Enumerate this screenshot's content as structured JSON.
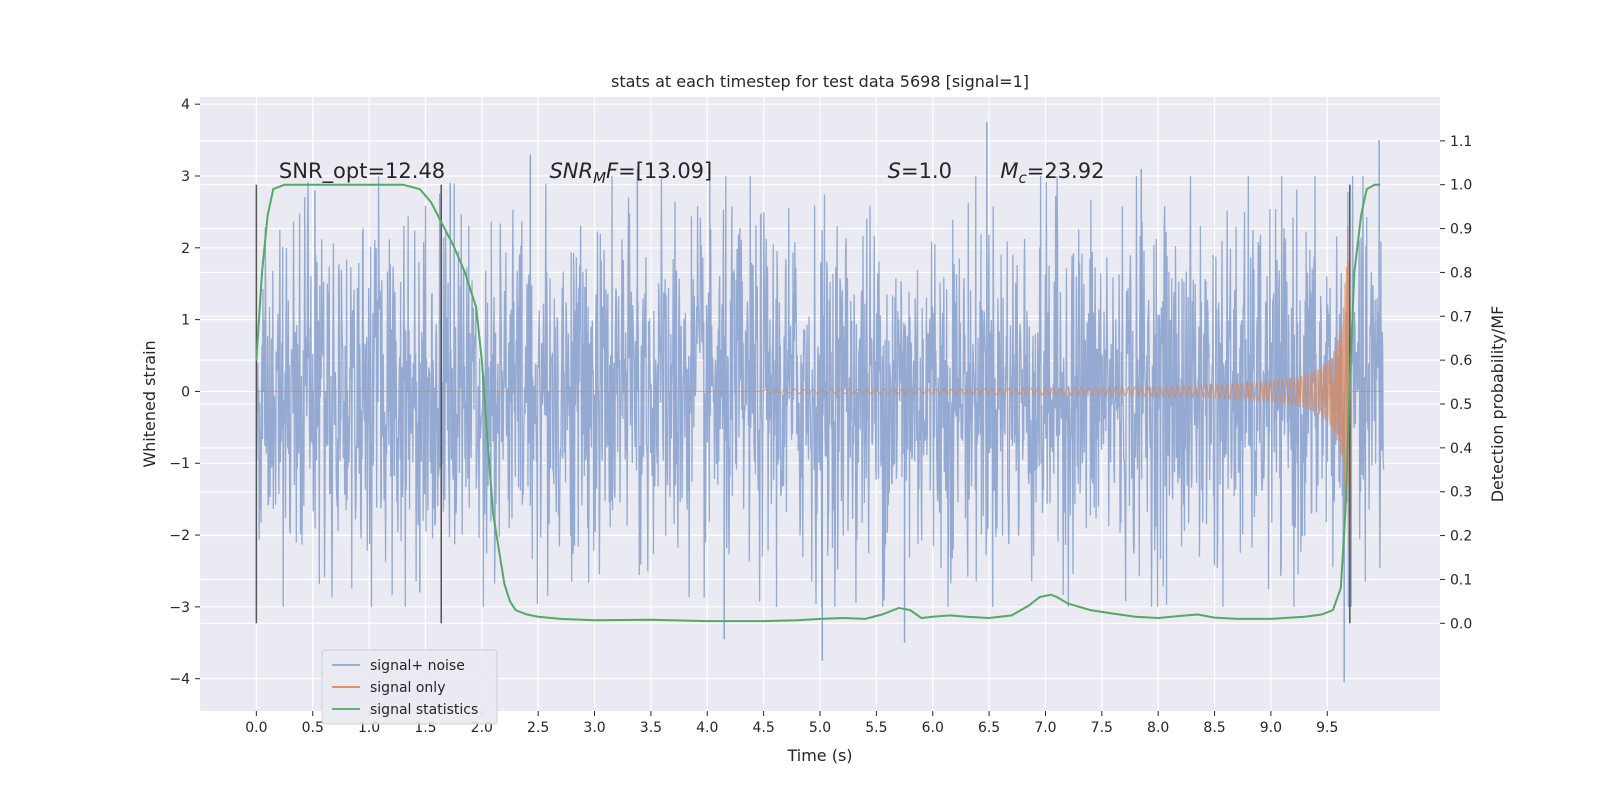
{
  "chart_data": {
    "type": "line",
    "title": "stats at each timestep for test data 5698 [signal=1]",
    "xlabel": "Time (s)",
    "ylabel": "Whitened strain",
    "ylabel_right": "Detection probability/MF",
    "xlim": [
      -0.5,
      10.5
    ],
    "ylim": [
      -4.45,
      4.1
    ],
    "ylim_right": [
      -0.2,
      1.2
    ],
    "x_ticks": [
      0.0,
      0.5,
      1.0,
      1.5,
      2.0,
      2.5,
      3.0,
      3.5,
      4.0,
      4.5,
      5.0,
      5.5,
      6.0,
      6.5,
      7.0,
      7.5,
      8.0,
      8.5,
      9.0,
      9.5
    ],
    "x_tick_labels": [
      "0.0",
      "0.5",
      "1.0",
      "1.5",
      "2.0",
      "2.5",
      "3.0",
      "3.5",
      "4.0",
      "4.5",
      "5.0",
      "5.5",
      "6.0",
      "6.5",
      "7.0",
      "7.5",
      "8.0",
      "8.5",
      "9.0",
      "9.5"
    ],
    "y_ticks": [
      -4,
      -3,
      -2,
      -1,
      0,
      1,
      2,
      3,
      4
    ],
    "y_tick_labels": [
      "−4",
      "−3",
      "−2",
      "−1",
      "0",
      "1",
      "2",
      "3",
      "4"
    ],
    "y2_ticks": [
      0.0,
      0.1,
      0.2,
      0.3,
      0.4,
      0.5,
      0.6,
      0.7,
      0.8,
      0.9,
      1.0,
      1.1
    ],
    "y2_tick_labels": [
      "0.0",
      "0.1",
      "0.2",
      "0.3",
      "0.4",
      "0.5",
      "0.6",
      "0.7",
      "0.8",
      "0.9",
      "1.0",
      "1.1"
    ],
    "grid": true,
    "legend_placement": "lower-left",
    "vertical_lines_x": [
      0.0,
      1.64,
      9.7
    ],
    "annotations": [
      {
        "id": "snr_opt",
        "x": 0.2,
        "text_plain": "SNR_opt=12.48"
      },
      {
        "id": "snr_mf",
        "x": 2.6,
        "text_italic": "SNR",
        "sub": "M",
        "text_rest_italic": "F",
        "text_rest": "=[13.09]"
      },
      {
        "id": "s",
        "x": 5.6,
        "text_italic": "S",
        "text_rest": "=1.0"
      },
      {
        "id": "mc",
        "x": 6.6,
        "text_italic": "M",
        "sub": "c",
        "text_rest": "=23.92"
      }
    ],
    "series": [
      {
        "name": "signal+ noise",
        "color": "#8fa6d0",
        "axis": "left",
        "x_range": [
          0.0,
          10.0
        ],
        "typical_amplitude": 1.7,
        "peak_values": [
          {
            "x": 0.52,
            "y": 2.8
          },
          {
            "x": 1.45,
            "y": -2.8
          },
          {
            "x": 1.72,
            "y": 2.9
          },
          {
            "x": 2.43,
            "y": 3.3
          },
          {
            "x": 3.38,
            "y": 3.1
          },
          {
            "x": 4.15,
            "y": -3.45
          },
          {
            "x": 5.02,
            "y": -3.75
          },
          {
            "x": 5.75,
            "y": -3.5
          },
          {
            "x": 6.48,
            "y": 3.75
          },
          {
            "x": 7.85,
            "y": 3.1
          },
          {
            "x": 9.65,
            "y": -4.05
          },
          {
            "x": 9.96,
            "y": 3.5
          }
        ]
      },
      {
        "name": "signal only",
        "color": "#dd8452",
        "axis": "left",
        "type": "chirp",
        "merger_time": 9.7,
        "start_amplitude": 0.005,
        "peak_amplitude": 2.3
      },
      {
        "name": "signal statistics",
        "color": "#55a868",
        "axis": "right",
        "x": [
          0.0,
          0.05,
          0.1,
          0.15,
          0.25,
          0.5,
          1.0,
          1.3,
          1.45,
          1.55,
          1.65,
          1.75,
          1.85,
          1.95,
          2.0,
          2.05,
          2.1,
          2.15,
          2.2,
          2.25,
          2.3,
          2.4,
          2.5,
          2.7,
          3.0,
          3.5,
          4.0,
          4.5,
          4.8,
          5.0,
          5.2,
          5.4,
          5.55,
          5.7,
          5.8,
          5.9,
          6.0,
          6.15,
          6.3,
          6.5,
          6.7,
          6.85,
          6.95,
          7.05,
          7.1,
          7.2,
          7.4,
          7.6,
          7.8,
          8.0,
          8.2,
          8.35,
          8.5,
          8.7,
          9.0,
          9.3,
          9.45,
          9.55,
          9.62,
          9.66,
          9.7,
          9.74,
          9.8,
          9.85,
          9.92,
          9.97
        ],
        "y": [
          0.6,
          0.8,
          0.93,
          0.99,
          1.0,
          1.0,
          1.0,
          1.0,
          0.99,
          0.96,
          0.91,
          0.86,
          0.8,
          0.72,
          0.6,
          0.42,
          0.25,
          0.17,
          0.09,
          0.05,
          0.03,
          0.02,
          0.015,
          0.01,
          0.007,
          0.008,
          0.005,
          0.005,
          0.007,
          0.01,
          0.012,
          0.01,
          0.02,
          0.035,
          0.03,
          0.012,
          0.015,
          0.018,
          0.015,
          0.012,
          0.018,
          0.04,
          0.06,
          0.065,
          0.06,
          0.045,
          0.03,
          0.022,
          0.015,
          0.012,
          0.017,
          0.02,
          0.013,
          0.01,
          0.01,
          0.015,
          0.02,
          0.03,
          0.08,
          0.25,
          0.55,
          0.8,
          0.93,
          0.99,
          1.0,
          1.0
        ]
      }
    ]
  }
}
